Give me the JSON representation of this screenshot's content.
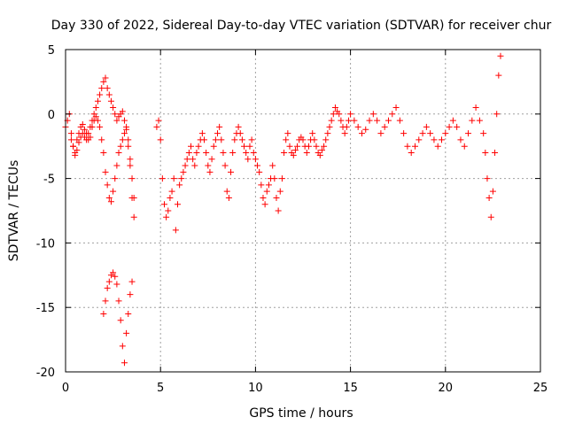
{
  "chart_data": {
    "type": "scatter",
    "title": "Day 330 of 2022, Sidereal Day-to-day VTEC variation (SDTVAR) for receiver chur",
    "xlabel": "GPS time / hours",
    "ylabel": "SDTVAR / TECUs",
    "xlim": [
      0,
      25
    ],
    "ylim": [
      -20,
      5
    ],
    "xticks": [
      0,
      5,
      10,
      15,
      20,
      25
    ],
    "yticks": [
      -20,
      -15,
      -10,
      -5,
      0,
      5
    ],
    "grid": true,
    "marker": "+",
    "color": "#ff0000",
    "series": [
      {
        "name": "SDTVAR",
        "x": [
          0.0,
          0.1,
          0.2,
          0.3,
          0.4,
          0.5,
          0.6,
          0.7,
          0.8,
          0.9,
          1.0,
          1.1,
          1.2,
          1.3,
          1.4,
          1.5,
          1.6,
          1.7,
          1.8,
          1.9,
          2.0,
          2.1,
          2.2,
          2.3,
          2.4,
          2.5,
          2.6,
          2.7,
          2.8,
          2.9,
          3.0,
          3.1,
          3.2,
          3.3,
          3.4,
          3.5,
          3.6,
          0.3,
          0.4,
          0.5,
          0.6,
          0.7,
          0.8,
          0.9,
          1.0,
          1.1,
          1.2,
          1.3,
          1.4,
          1.5,
          1.6,
          1.7,
          1.8,
          1.9,
          2.0,
          2.1,
          2.2,
          2.3,
          2.4,
          2.5,
          2.6,
          2.7,
          2.8,
          2.9,
          3.0,
          3.1,
          3.2,
          3.3,
          3.4,
          3.5,
          3.6,
          2.0,
          2.1,
          2.2,
          2.3,
          2.4,
          2.5,
          2.6,
          2.7,
          2.8,
          2.9,
          3.0,
          3.1,
          3.2,
          3.3,
          3.4,
          3.5,
          4.8,
          4.9,
          5.0,
          5.1,
          5.2,
          5.3,
          5.4,
          5.5,
          5.6,
          5.7,
          5.8,
          5.9,
          6.0,
          6.1,
          6.2,
          6.3,
          6.4,
          6.5,
          6.6,
          6.7,
          6.8,
          6.9,
          7.0,
          7.1,
          7.2,
          7.3,
          7.4,
          7.5,
          7.6,
          7.7,
          7.8,
          7.9,
          8.0,
          8.1,
          8.2,
          8.3,
          8.4,
          8.5,
          8.6,
          8.7,
          8.8,
          8.9,
          9.0,
          9.1,
          9.2,
          9.3,
          9.4,
          9.5,
          9.6,
          9.7,
          9.8,
          9.9,
          10.0,
          10.1,
          10.2,
          10.3,
          10.4,
          10.5,
          10.6,
          10.7,
          10.8,
          10.9,
          11.0,
          11.1,
          11.2,
          11.3,
          11.4,
          11.5,
          11.6,
          11.7,
          11.8,
          11.9,
          12.0,
          12.1,
          12.2,
          12.3,
          12.4,
          12.5,
          12.6,
          12.7,
          12.8,
          12.9,
          13.0,
          13.1,
          13.2,
          13.3,
          13.4,
          13.5,
          13.6,
          13.7,
          13.8,
          13.9,
          14.0,
          14.1,
          14.2,
          14.3,
          14.4,
          14.5,
          14.6,
          14.7,
          14.8,
          14.9,
          15.0,
          15.2,
          15.4,
          15.6,
          15.8,
          16.0,
          16.2,
          16.4,
          16.6,
          16.8,
          17.0,
          17.2,
          17.4,
          17.6,
          17.8,
          18.0,
          18.2,
          18.4,
          18.6,
          18.8,
          19.0,
          19.2,
          19.4,
          19.6,
          19.8,
          20.0,
          20.2,
          20.4,
          20.6,
          20.8,
          21.0,
          21.2,
          21.4,
          21.6,
          21.8,
          22.0,
          22.1,
          22.2,
          22.3,
          22.4,
          22.5,
          22.6,
          22.7,
          22.8,
          22.9
        ],
        "y": [
          -1.0,
          -0.5,
          0.0,
          -1.5,
          -2.5,
          -3.2,
          -2.0,
          -1.5,
          -1.0,
          -0.8,
          -1.2,
          -1.5,
          -2.0,
          -1.8,
          -1.0,
          -0.5,
          0.5,
          1.0,
          1.5,
          2.0,
          2.5,
          2.8,
          2.0,
          1.5,
          1.0,
          0.5,
          0.0,
          -0.5,
          -0.2,
          0.0,
          0.2,
          -0.5,
          -1.0,
          -2.5,
          -4.0,
          -6.5,
          -8.0,
          -2.0,
          -2.5,
          -3.0,
          -2.8,
          -2.2,
          -1.8,
          -1.5,
          -1.8,
          -2.0,
          -1.5,
          -1.0,
          -0.5,
          0.0,
          -0.2,
          -0.5,
          -1.0,
          -2.0,
          -3.0,
          -4.5,
          -5.5,
          -6.5,
          -6.8,
          -6.0,
          -5.0,
          -4.0,
          -3.0,
          -2.5,
          -2.0,
          -1.5,
          -1.2,
          -2.0,
          -3.5,
          -5.0,
          -6.5,
          -15.5,
          -14.5,
          -13.5,
          -13.0,
          -12.5,
          -12.3,
          -12.6,
          -13.2,
          -14.5,
          -16.0,
          -18.0,
          -19.3,
          -17.0,
          -15.5,
          -14.0,
          -13.0,
          -1.0,
          -0.5,
          -2.0,
          -5.0,
          -7.0,
          -8.0,
          -7.5,
          -6.5,
          -6.0,
          -5.0,
          -9.0,
          -7.0,
          -5.5,
          -5.0,
          -4.5,
          -4.0,
          -3.5,
          -3.0,
          -2.5,
          -3.5,
          -4.0,
          -3.0,
          -2.5,
          -2.0,
          -1.5,
          -2.0,
          -3.0,
          -4.0,
          -4.5,
          -3.5,
          -2.5,
          -2.0,
          -1.5,
          -1.0,
          -2.0,
          -3.0,
          -4.0,
          -6.0,
          -6.5,
          -4.5,
          -3.0,
          -2.0,
          -1.5,
          -1.0,
          -1.5,
          -2.0,
          -2.5,
          -3.0,
          -3.5,
          -2.5,
          -2.0,
          -3.0,
          -3.5,
          -4.0,
          -4.5,
          -5.5,
          -6.5,
          -7.0,
          -6.0,
          -5.5,
          -5.0,
          -4.0,
          -5.0,
          -6.5,
          -7.5,
          -6.0,
          -5.0,
          -3.0,
          -2.0,
          -1.5,
          -2.5,
          -3.0,
          -3.2,
          -2.8,
          -2.5,
          -2.0,
          -1.8,
          -2.0,
          -2.5,
          -3.0,
          -2.5,
          -2.0,
          -1.5,
          -2.0,
          -2.5,
          -3.0,
          -3.2,
          -2.8,
          -2.5,
          -2.0,
          -1.5,
          -1.0,
          -0.5,
          0.0,
          0.5,
          0.2,
          0.0,
          -0.5,
          -1.0,
          -1.5,
          -1.0,
          -0.5,
          0.0,
          -0.5,
          -1.0,
          -1.5,
          -1.2,
          -0.5,
          0.0,
          -0.5,
          -1.5,
          -1.0,
          -0.5,
          0.0,
          0.5,
          -0.5,
          -1.5,
          -2.5,
          -3.0,
          -2.5,
          -2.0,
          -1.5,
          -1.0,
          -1.5,
          -2.0,
          -2.5,
          -2.0,
          -1.5,
          -1.0,
          -0.5,
          -1.0,
          -2.0,
          -2.5,
          -1.5,
          -0.5,
          0.5,
          -0.5,
          -1.5,
          -3.0,
          -5.0,
          -6.5,
          -8.0,
          -6.0,
          -3.0,
          0.0,
          3.0,
          4.5
        ]
      }
    ]
  }
}
